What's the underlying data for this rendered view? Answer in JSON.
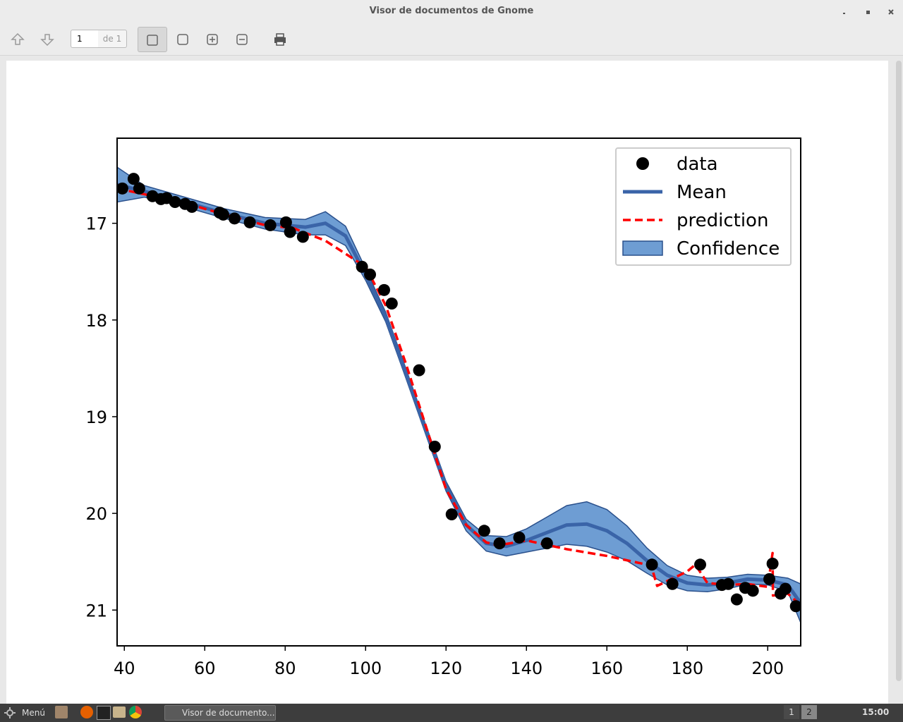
{
  "window": {
    "title": "Visor de documentos de Gnome"
  },
  "toolbar": {
    "page": "1",
    "of": "de 1"
  },
  "taskbar": {
    "menu": "Menú",
    "task": "Visor de documento...",
    "workspaces": [
      "1",
      "2"
    ],
    "clock": "15:00"
  },
  "chart_data": {
    "type": "line",
    "xlim": [
      38.2,
      208.2
    ],
    "ylim": [
      21.37,
      16.12
    ],
    "xticks": [
      40,
      60,
      80,
      100,
      120,
      140,
      160,
      180,
      200
    ],
    "yticks": [
      17,
      18,
      19,
      20,
      21
    ],
    "legend": "upper right",
    "series": [
      {
        "name": "data",
        "type": "scatter",
        "color": "#000000",
        "x": [
          39.5,
          42.3,
          43.7,
          47.0,
          49.1,
          50.5,
          52.6,
          55.1,
          56.8,
          63.7,
          64.6,
          67.4,
          71.2,
          76.3,
          80.2,
          81.2,
          84.4,
          99.1,
          101.1,
          104.6,
          106.5,
          113.3,
          117.2,
          121.4,
          129.5,
          133.3,
          138.2,
          145.1,
          171.2,
          176.3,
          183.2,
          188.6,
          190.2,
          192.3,
          194.4,
          196.3,
          200.4,
          201.2,
          203.2,
          204.4,
          207.0
        ],
        "values": [
          16.64,
          16.54,
          16.64,
          16.72,
          16.75,
          16.74,
          16.78,
          16.8,
          16.83,
          16.89,
          16.91,
          16.95,
          16.99,
          17.02,
          16.99,
          17.09,
          17.14,
          17.45,
          17.53,
          17.69,
          17.83,
          18.52,
          19.31,
          20.01,
          20.18,
          20.31,
          20.25,
          20.31,
          20.53,
          20.73,
          20.53,
          20.74,
          20.73,
          20.89,
          20.77,
          20.8,
          20.68,
          20.52,
          20.83,
          20.78,
          20.96
        ]
      },
      {
        "name": "Mean",
        "type": "line",
        "color": "#3a64a8",
        "x": [
          38.2,
          45,
          55,
          65,
          75,
          85,
          90,
          95,
          100,
          105,
          110,
          115,
          120,
          125,
          130,
          135,
          140,
          145,
          150,
          155,
          160,
          165,
          170,
          175,
          180,
          185,
          190,
          195,
          200,
          205,
          208.2
        ],
        "values": [
          16.6,
          16.67,
          16.78,
          16.9,
          17.0,
          17.04,
          17.0,
          17.13,
          17.53,
          17.97,
          18.55,
          19.14,
          19.72,
          20.12,
          20.31,
          20.34,
          20.28,
          20.2,
          20.12,
          20.11,
          20.18,
          20.31,
          20.49,
          20.64,
          20.72,
          20.74,
          20.72,
          20.68,
          20.69,
          20.74,
          20.93
        ]
      },
      {
        "name": "prediction",
        "type": "line",
        "linestyle": "dashed",
        "color": "#ff0000",
        "x": [
          38.2,
          45,
          55,
          65,
          75,
          82,
          90,
          100,
          105,
          110,
          115,
          120,
          125,
          130,
          133,
          140,
          150,
          160,
          171,
          172.5,
          180,
          182,
          185,
          190,
          195,
          200,
          201.2,
          201.3,
          205,
          208.2
        ],
        "values": [
          16.64,
          16.7,
          16.79,
          16.91,
          17.02,
          17.05,
          17.18,
          17.45,
          17.85,
          18.45,
          19.1,
          19.75,
          20.12,
          20.3,
          20.33,
          20.28,
          20.37,
          20.44,
          20.54,
          20.75,
          20.6,
          20.53,
          20.72,
          20.74,
          20.73,
          20.76,
          20.41,
          20.85,
          20.83,
          20.95
        ]
      },
      {
        "name": "Confidence",
        "type": "band",
        "color": "#6e9dd3",
        "edgecolor": "#2a508c",
        "x": [
          38.2,
          45,
          55,
          65,
          75,
          85,
          90,
          95,
          100,
          105,
          110,
          115,
          120,
          125,
          130,
          135,
          140,
          145,
          150,
          155,
          160,
          165,
          170,
          175,
          180,
          185,
          190,
          195,
          200,
          205,
          208.2
        ],
        "lower": [
          16.42,
          16.61,
          16.73,
          16.85,
          16.94,
          16.96,
          16.88,
          17.03,
          17.47,
          17.92,
          18.5,
          19.09,
          19.67,
          20.06,
          20.23,
          20.24,
          20.16,
          20.04,
          19.92,
          19.88,
          19.96,
          20.13,
          20.36,
          20.54,
          20.64,
          20.67,
          20.66,
          20.63,
          20.64,
          20.67,
          20.73
        ],
        "upper": [
          16.78,
          16.73,
          16.83,
          16.95,
          17.06,
          17.12,
          17.12,
          17.23,
          17.59,
          18.02,
          18.6,
          19.19,
          19.77,
          20.18,
          20.39,
          20.44,
          20.4,
          20.36,
          20.32,
          20.34,
          20.4,
          20.49,
          20.62,
          20.74,
          20.8,
          20.81,
          20.78,
          20.73,
          20.74,
          20.81,
          21.13
        ]
      }
    ]
  }
}
